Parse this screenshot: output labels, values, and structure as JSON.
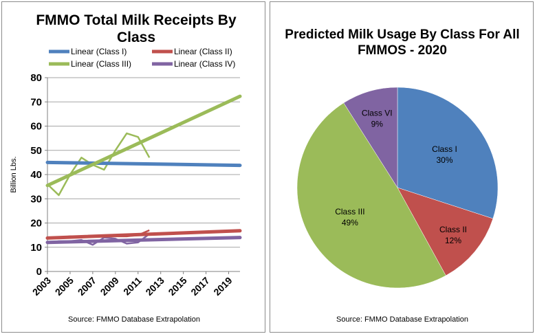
{
  "chart_data": [
    {
      "type": "line",
      "title": "FMMO Total Milk Receipts By Class",
      "xlabel": "",
      "ylabel": "Billion Lbs.",
      "ylim": [
        0,
        80
      ],
      "yticks": [
        0,
        10,
        20,
        30,
        40,
        50,
        60,
        70,
        80
      ],
      "xlim": [
        2003,
        2020
      ],
      "xticks": [
        2003,
        2005,
        2007,
        2009,
        2011,
        2013,
        2015,
        2017,
        2019
      ],
      "grid": true,
      "legend_placement": "top",
      "source": "Source:  FMMO Database Extrapolation",
      "series": [
        {
          "name": "Class I",
          "color": "#4f81bd",
          "x": [
            2003,
            2004,
            2005,
            2006,
            2007,
            2008,
            2009,
            2010,
            2011,
            2012
          ],
          "values": [
            45,
            45,
            45,
            45,
            44.5,
            44.5,
            44.5,
            44.5,
            44.5,
            44
          ],
          "trend_name": "Linear (Class I)",
          "trend": [
            [
              2003,
              45
            ],
            [
              2020,
              43.8
            ]
          ]
        },
        {
          "name": "Class II",
          "color": "#c0504d",
          "x": [
            2003,
            2004,
            2005,
            2006,
            2007,
            2008,
            2009,
            2010,
            2011,
            2012
          ],
          "values": [
            13.5,
            14,
            14.5,
            14.5,
            14.5,
            14.5,
            14.5,
            14.5,
            15,
            17
          ],
          "trend_name": "Linear (Class II)",
          "trend": [
            [
              2003,
              13.8
            ],
            [
              2020,
              16.8
            ]
          ]
        },
        {
          "name": "Class III",
          "color": "#9bbb59",
          "x": [
            2003,
            2004,
            2005,
            2006,
            2007,
            2008,
            2009,
            2010,
            2011,
            2012
          ],
          "values": [
            36,
            31.5,
            40,
            47,
            44,
            42,
            50,
            57,
            55.5,
            47
          ],
          "trend_name": "Linear (Class III)",
          "trend": [
            [
              2003,
              35.5
            ],
            [
              2020,
              72.3
            ]
          ]
        },
        {
          "name": "Class IV",
          "color": "#8064a2",
          "x": [
            2003,
            2004,
            2005,
            2006,
            2007,
            2008,
            2009,
            2010,
            2011,
            2012
          ],
          "values": [
            12,
            12.5,
            12.5,
            13,
            11,
            14,
            13.5,
            11.5,
            12,
            15.5
          ],
          "trend_name": "Linear (Class IV)",
          "trend": [
            [
              2003,
              12
            ],
            [
              2020,
              14
            ]
          ]
        }
      ]
    },
    {
      "type": "pie",
      "title": "Predicted Milk Usage By Class For All FMMOS - 2020",
      "source": "Source:  FMMO Database Extrapolation",
      "slices": [
        {
          "name": "Class I",
          "value": 30,
          "label": "30%",
          "color": "#4f81bd"
        },
        {
          "name": "Class II",
          "value": 12,
          "label": "12%",
          "color": "#c0504d"
        },
        {
          "name": "Class III",
          "value": 49,
          "label": "49%",
          "color": "#9bbb59"
        },
        {
          "name": "Class VI",
          "value": 9,
          "label": "9%",
          "color": "#8064a2"
        }
      ]
    }
  ]
}
